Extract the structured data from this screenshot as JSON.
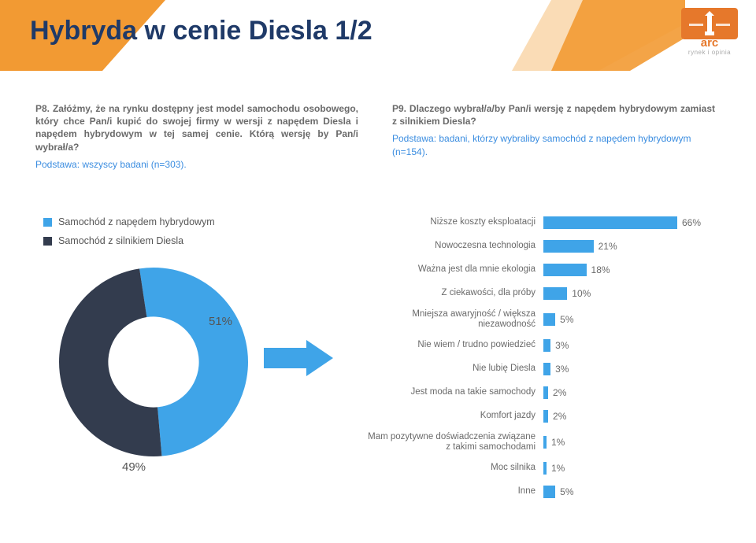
{
  "title": "Hybryda w cenie Diesla 1/2",
  "header": {
    "shape_fill": "#f29a33",
    "shape_fill_light": "#f6c07a",
    "title_color": "#1f3a68"
  },
  "logo": {
    "bar_color": "#e6782b",
    "light_color": "#f29a33",
    "caption": "rynek i opinia"
  },
  "questions": {
    "left": {
      "text": "P8. Załóżmy, że na rynku dostępny jest model samochodu osobowego, który chce Pan/i kupić do swojej firmy w wersji z napędem Diesla i napędem hybrydowym w tej samej cenie. Którą wersję by Pan/i wybrał/a?",
      "base": "Podstawa: wszyscy badani (n=303)."
    },
    "right": {
      "text": "P9. Dlaczego wybrał/a/by Pan/i wersję z napędem hybrydowym zamiast z silnikiem Diesla?",
      "base": "Podstawa: badani, którzy wybraliby samochód z napędem hybrydowym (n=154)."
    }
  },
  "legend": [
    {
      "label": "Samochód z napędem hybrydowym",
      "color": "#3fa4e8"
    },
    {
      "label": "Samochód z silnikiem Diesla",
      "color": "#333c4e"
    }
  ],
  "donut": {
    "slices": [
      {
        "label": "51%",
        "value": 51,
        "color": "#3fa4e8"
      },
      {
        "label": "49%",
        "value": 49,
        "color": "#333c4e"
      }
    ],
    "inner_ratio": 0.48,
    "bg": "#ffffff"
  },
  "arrow_color": "#3fa4e8",
  "bars": {
    "color": "#3fa4e8",
    "max": 66,
    "track_width": 200,
    "label_fontsize": 11.5,
    "value_fontsize": 12,
    "items": [
      {
        "label": "Niższe koszty eksploatacji",
        "value": 66
      },
      {
        "label": "Nowoczesna technologia",
        "value": 21
      },
      {
        "label": "Ważna jest dla mnie ekologia",
        "value": 18
      },
      {
        "label": "Z ciekawości, dla próby",
        "value": 10
      },
      {
        "label": "Mniejsza awaryjność / większa niezawodność",
        "value": 5
      },
      {
        "label": "Nie wiem / trudno powiedzieć",
        "value": 3
      },
      {
        "label": "Nie lubię Diesla",
        "value": 3
      },
      {
        "label": "Jest moda na takie samochody",
        "value": 2
      },
      {
        "label": "Komfort jazdy",
        "value": 2
      },
      {
        "label": "Mam pozytywne doświadczenia związane z takimi samochodami",
        "value": 1
      },
      {
        "label": "Moc silnika",
        "value": 1
      },
      {
        "label": "Inne",
        "value": 5
      }
    ]
  }
}
